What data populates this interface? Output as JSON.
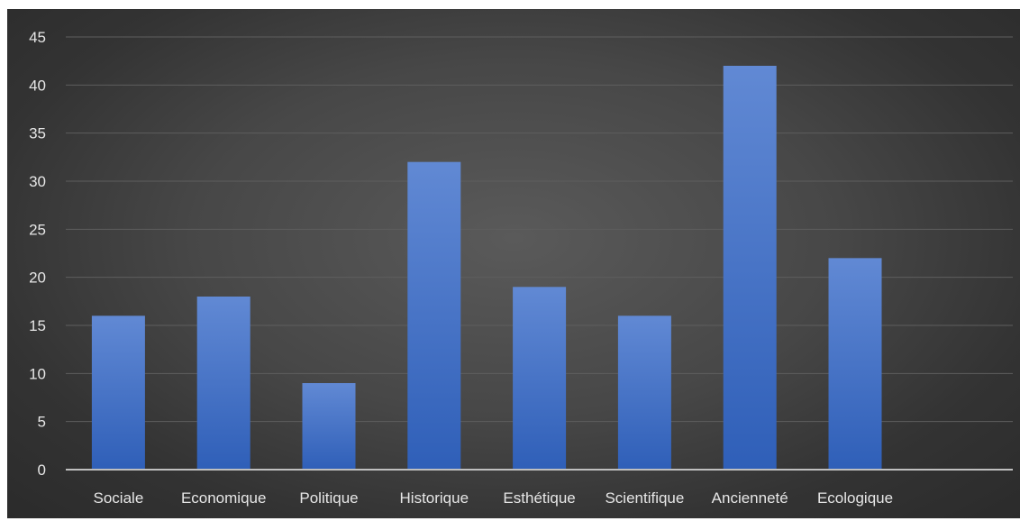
{
  "chart_data": {
    "type": "bar",
    "categories": [
      "Sociale",
      "Economique",
      "Politique",
      "Historique",
      "Esthétique",
      "Scientifique",
      "Ancienneté",
      "Ecologique"
    ],
    "values": [
      16,
      18,
      9,
      32,
      19,
      16,
      42,
      22
    ],
    "title": "",
    "xlabel": "",
    "ylabel": "",
    "ylim": [
      0,
      45
    ],
    "yticks": [
      0,
      5,
      10,
      15,
      20,
      25,
      30,
      35,
      40,
      45
    ],
    "grid": true,
    "legend": "none"
  },
  "colors": {
    "bar_top": "#6189d4",
    "bar_bottom": "#2f5fb8",
    "gridline": "#5e5e5e",
    "axis_line": "#bfbfbf",
    "label_text": "#e6e6e6"
  }
}
